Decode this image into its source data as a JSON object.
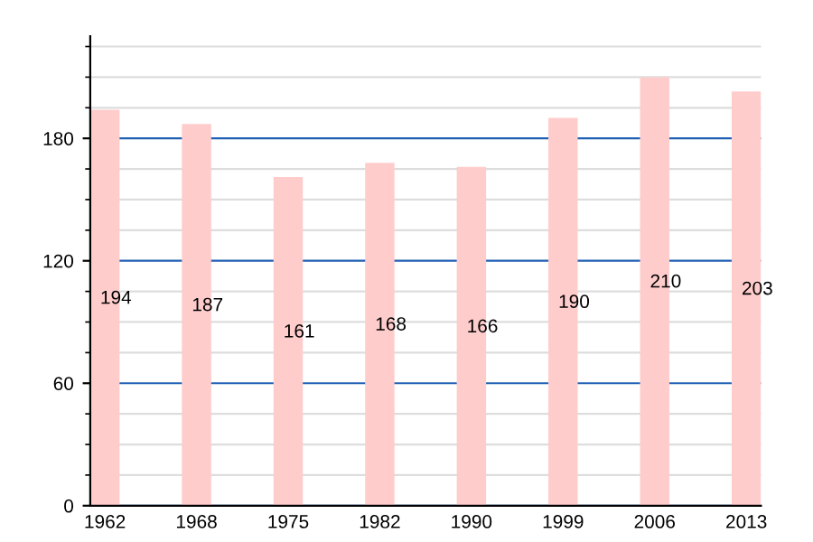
{
  "chart_data": {
    "type": "bar",
    "categories": [
      "1962",
      "1968",
      "1975",
      "1982",
      "1990",
      "1999",
      "2006",
      "2013"
    ],
    "values": [
      194,
      187,
      161,
      168,
      166,
      190,
      210,
      203
    ],
    "color": "#ffcccc",
    "ylim": [
      0,
      230
    ],
    "yticks": [
      0,
      60,
      120,
      180
    ],
    "grid": "y",
    "data_labels": true
  }
}
